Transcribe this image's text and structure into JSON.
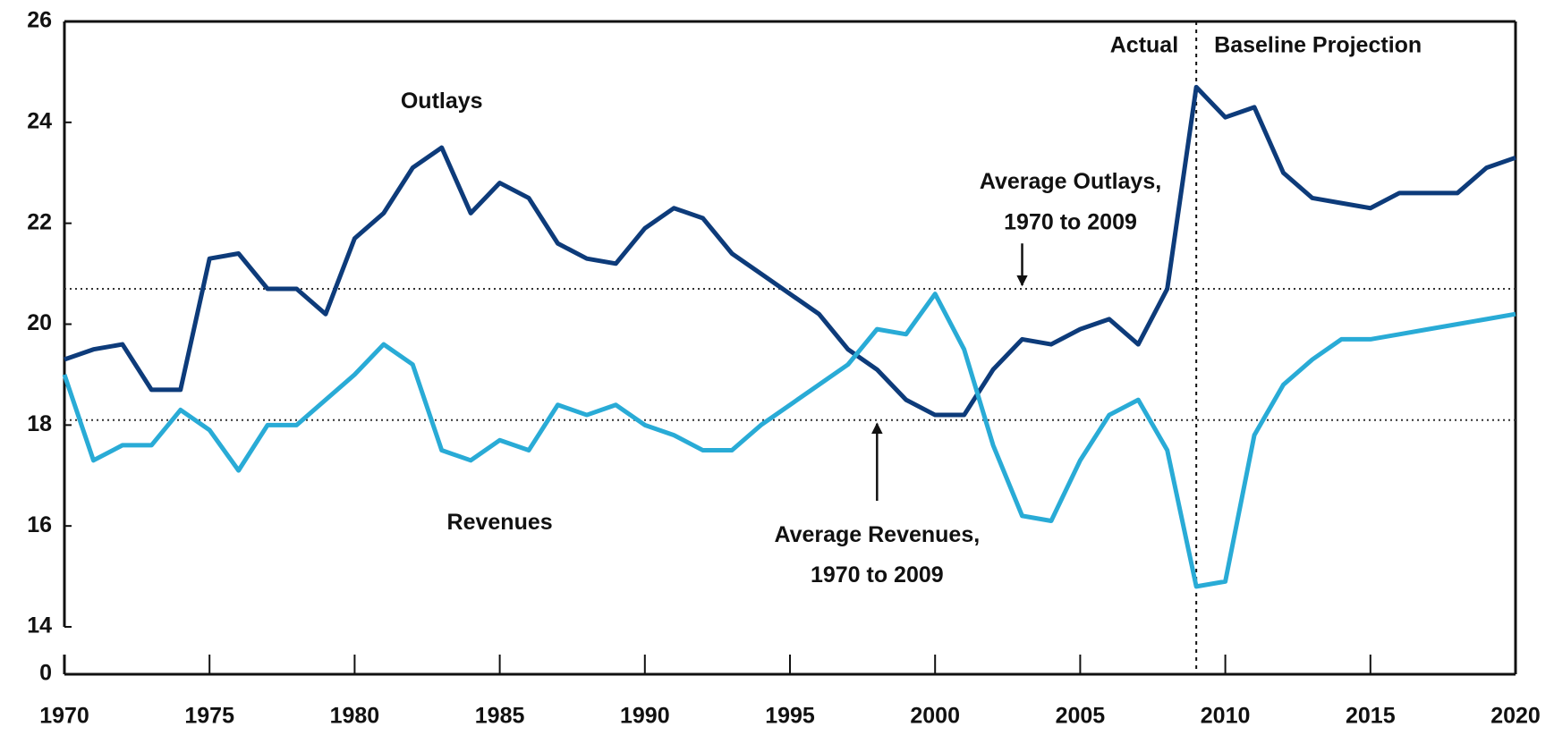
{
  "chart_data": {
    "type": "line",
    "x": [
      1970,
      1971,
      1972,
      1973,
      1974,
      1975,
      1976,
      1977,
      1978,
      1979,
      1980,
      1981,
      1982,
      1983,
      1984,
      1985,
      1986,
      1987,
      1988,
      1989,
      1990,
      1991,
      1992,
      1993,
      1994,
      1995,
      1996,
      1997,
      1998,
      1999,
      2000,
      2001,
      2002,
      2003,
      2004,
      2005,
      2006,
      2007,
      2008,
      2009,
      2010,
      2011,
      2012,
      2013,
      2014,
      2015,
      2016,
      2017,
      2018,
      2019,
      2020
    ],
    "series": [
      {
        "name": "Outlays",
        "color": "#0d3b7a",
        "values": [
          19.3,
          19.5,
          19.6,
          18.7,
          18.7,
          21.3,
          21.4,
          20.7,
          20.7,
          20.2,
          21.7,
          22.2,
          23.1,
          23.5,
          22.2,
          22.8,
          22.5,
          21.6,
          21.3,
          21.2,
          21.9,
          22.3,
          22.1,
          21.4,
          21.0,
          20.6,
          20.2,
          19.5,
          19.1,
          18.5,
          18.2,
          18.2,
          19.1,
          19.7,
          19.6,
          19.9,
          20.1,
          19.6,
          20.7,
          24.7,
          24.1,
          24.3,
          23.0,
          22.5,
          22.4,
          22.3,
          22.6,
          22.6,
          22.6,
          23.1,
          23.3
        ]
      },
      {
        "name": "Revenues",
        "color": "#29abd6",
        "values": [
          19.0,
          17.3,
          17.6,
          17.6,
          18.3,
          17.9,
          17.1,
          18.0,
          18.0,
          18.5,
          19.0,
          19.6,
          19.2,
          17.5,
          17.3,
          17.7,
          17.5,
          18.4,
          18.2,
          18.4,
          18.0,
          17.8,
          17.5,
          17.5,
          18.0,
          18.4,
          18.8,
          19.2,
          19.9,
          19.8,
          20.6,
          19.5,
          17.6,
          16.2,
          16.1,
          17.3,
          18.2,
          18.5,
          17.5,
          14.8,
          14.9,
          17.8,
          18.8,
          19.3,
          19.7,
          19.7,
          19.8,
          19.9,
          20.0,
          20.1,
          20.2
        ]
      }
    ],
    "xlim": [
      1970,
      2020
    ],
    "xticks": [
      1970,
      1975,
      1980,
      1985,
      1990,
      1995,
      2000,
      2005,
      2010,
      2015,
      2020
    ],
    "ylim": [
      14,
      26
    ],
    "yticks": [
      14,
      16,
      18,
      20,
      22,
      24,
      26
    ],
    "y_axis_break_label": 0,
    "reference_lines": [
      {
        "value": 20.7,
        "label": [
          "Average Outlays,",
          "1970 to 2009"
        ],
        "arrow_x": 2003
      },
      {
        "value": 18.1,
        "label": [
          "Average Revenues,",
          "1970 to 2009"
        ],
        "arrow_x": 1998
      }
    ],
    "divider": {
      "x": 2009,
      "left_label": "Actual",
      "right_label": "Baseline Projection"
    }
  }
}
